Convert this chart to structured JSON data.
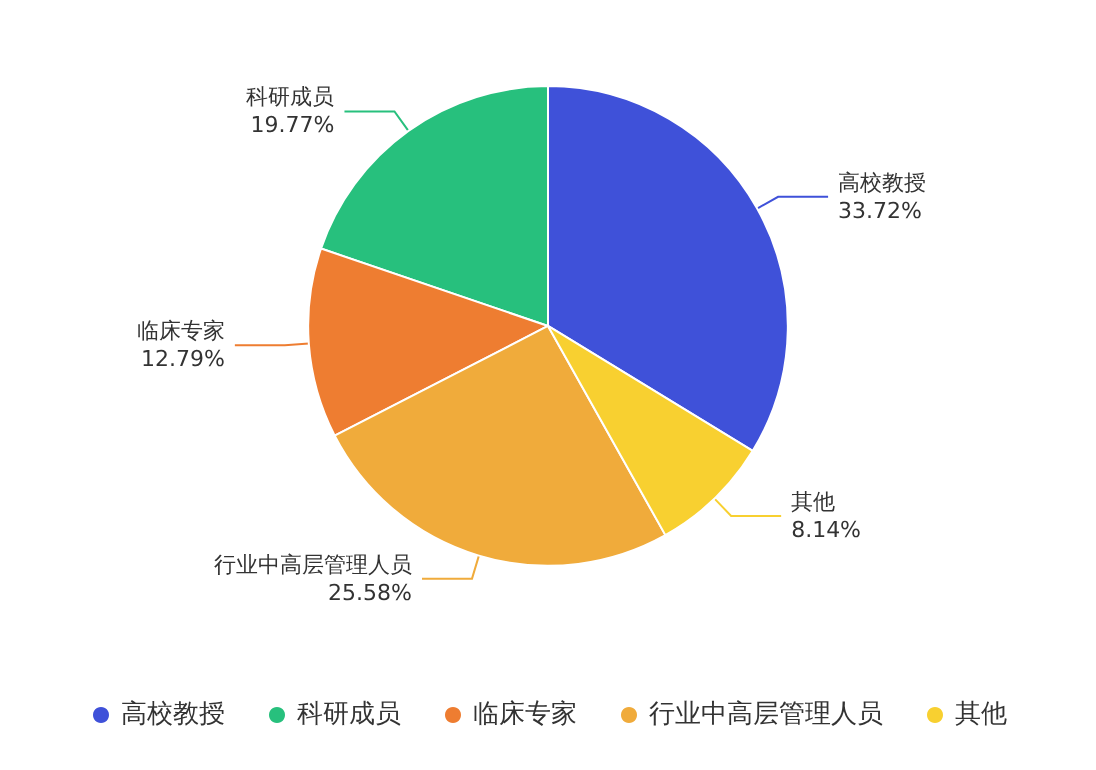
{
  "chart_data": {
    "type": "pie",
    "categories": [
      "高校教授",
      "科研成员",
      "临床专家",
      "行业中高层管理人员",
      "其他"
    ],
    "values": [
      33.72,
      19.77,
      12.79,
      25.58,
      8.14
    ],
    "colors": [
      "#3f51d9",
      "#27c07d",
      "#ee7d31",
      "#f0ab3b",
      "#f8d030"
    ],
    "value_labels": [
      "33.72%",
      "19.77%",
      "12.79%",
      "25.58%",
      "8.14%"
    ],
    "legend": "bottom"
  }
}
